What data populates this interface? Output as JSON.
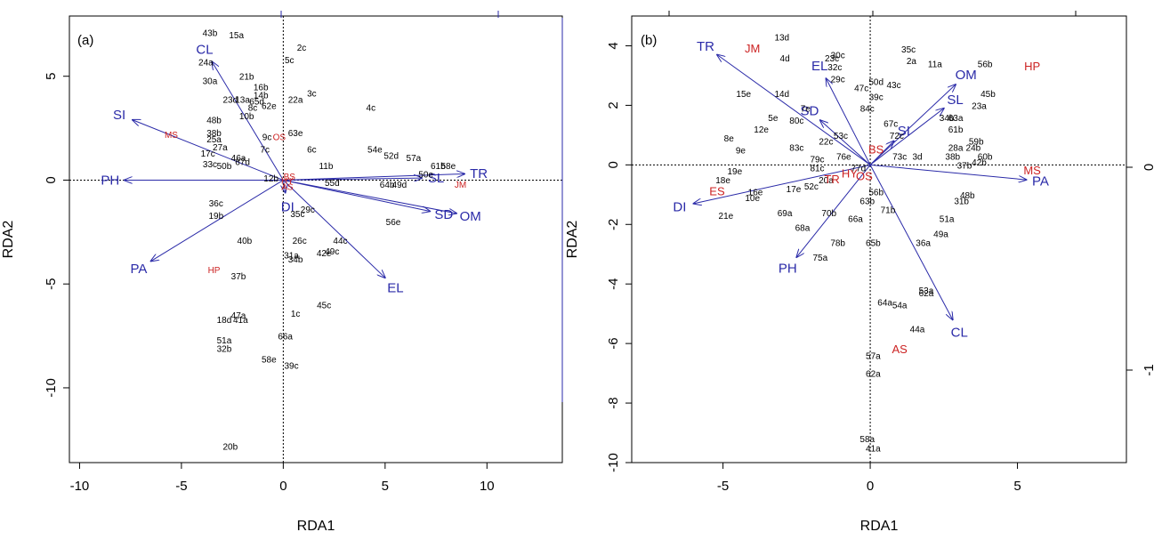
{
  "chart_data": [
    {
      "type": "scatter",
      "panel_label": "(a)",
      "xlabel": "RDA1",
      "ylabel": "RDA2",
      "xlim": [
        -10.5,
        13.7
      ],
      "ylim": [
        -13.6,
        7.9
      ],
      "xticks": [
        -10,
        -5,
        0,
        5,
        10
      ],
      "yticks": [
        5,
        0,
        -5,
        -10
      ],
      "sites": [
        {
          "label": "43b",
          "x": -3.6,
          "y": 7.1
        },
        {
          "label": "15a",
          "x": -2.3,
          "y": 7.0
        },
        {
          "label": "2c",
          "x": 0.9,
          "y": 6.4
        },
        {
          "label": "24a",
          "x": -3.8,
          "y": 5.7
        },
        {
          "label": "5c",
          "x": 0.3,
          "y": 5.8
        },
        {
          "label": "30a",
          "x": -3.6,
          "y": 4.8
        },
        {
          "label": "21b",
          "x": -1.8,
          "y": 5.0
        },
        {
          "label": "16b",
          "x": -1.1,
          "y": 4.5
        },
        {
          "label": "14b",
          "x": -1.1,
          "y": 4.1
        },
        {
          "label": "23d",
          "x": -2.6,
          "y": 3.9
        },
        {
          "label": "13a",
          "x": -2.0,
          "y": 3.9
        },
        {
          "label": "65d",
          "x": -1.3,
          "y": 3.8
        },
        {
          "label": "22a",
          "x": 0.6,
          "y": 3.9
        },
        {
          "label": "3c",
          "x": 1.4,
          "y": 4.2
        },
        {
          "label": "8c",
          "x": -1.5,
          "y": 3.5
        },
        {
          "label": "62e",
          "x": -0.7,
          "y": 3.6
        },
        {
          "label": "4c",
          "x": 4.3,
          "y": 3.5
        },
        {
          "label": "10b",
          "x": -1.8,
          "y": 3.1
        },
        {
          "label": "48b",
          "x": -3.4,
          "y": 2.9
        },
        {
          "label": "38b",
          "x": -3.4,
          "y": 2.3
        },
        {
          "label": "63e",
          "x": 0.6,
          "y": 2.3
        },
        {
          "label": "9c",
          "x": -0.8,
          "y": 2.1
        },
        {
          "label": "25a",
          "x": -3.4,
          "y": 2.0
        },
        {
          "label": "27a",
          "x": -3.1,
          "y": 1.6
        },
        {
          "label": "7c",
          "x": -0.9,
          "y": 1.5
        },
        {
          "label": "6c",
          "x": 1.4,
          "y": 1.5
        },
        {
          "label": "54e",
          "x": 4.5,
          "y": 1.5
        },
        {
          "label": "52d",
          "x": 5.3,
          "y": 1.2
        },
        {
          "label": "17c",
          "x": -3.7,
          "y": 1.3
        },
        {
          "label": "46a",
          "x": -2.2,
          "y": 1.1
        },
        {
          "label": "57a",
          "x": 6.4,
          "y": 1.1
        },
        {
          "label": "33c",
          "x": -3.6,
          "y": 0.8
        },
        {
          "label": "50b",
          "x": -2.9,
          "y": 0.7
        },
        {
          "label": "67d",
          "x": -2.0,
          "y": 0.9
        },
        {
          "label": "11b",
          "x": 2.1,
          "y": 0.7
        },
        {
          "label": "61b",
          "x": 7.6,
          "y": 0.7
        },
        {
          "label": "58e",
          "x": 8.1,
          "y": 0.7
        },
        {
          "label": "12b",
          "x": -0.6,
          "y": 0.1
        },
        {
          "label": "50e",
          "x": 7.0,
          "y": 0.3
        },
        {
          "label": "55d",
          "x": 2.4,
          "y": -0.1
        },
        {
          "label": "64b",
          "x": 5.1,
          "y": -0.2
        },
        {
          "label": "49d",
          "x": 5.7,
          "y": -0.2
        },
        {
          "label": "36c",
          "x": -3.3,
          "y": -1.1
        },
        {
          "label": "29c",
          "x": 1.2,
          "y": -1.4
        },
        {
          "label": "35c",
          "x": 0.7,
          "y": -1.6
        },
        {
          "label": "19b",
          "x": -3.3,
          "y": -1.7
        },
        {
          "label": "56e",
          "x": 5.4,
          "y": -2.0
        },
        {
          "label": "40b",
          "x": -1.9,
          "y": -2.9
        },
        {
          "label": "26c",
          "x": 0.8,
          "y": -2.9
        },
        {
          "label": "44c",
          "x": 2.8,
          "y": -2.9
        },
        {
          "label": "49c",
          "x": 2.4,
          "y": -3.4
        },
        {
          "label": "42e",
          "x": 2.0,
          "y": -3.5
        },
        {
          "label": "31a",
          "x": 0.4,
          "y": -3.6
        },
        {
          "label": "34b",
          "x": 0.6,
          "y": -3.8
        },
        {
          "label": "37b",
          "x": -2.2,
          "y": -4.6
        },
        {
          "label": "45c",
          "x": 2.0,
          "y": -6.0
        },
        {
          "label": "1c",
          "x": 0.6,
          "y": -6.4
        },
        {
          "label": "47a",
          "x": -2.2,
          "y": -6.5
        },
        {
          "label": "18d",
          "x": -2.9,
          "y": -6.7
        },
        {
          "label": "41a",
          "x": -2.1,
          "y": -6.7
        },
        {
          "label": "66a",
          "x": 0.1,
          "y": -7.5
        },
        {
          "label": "51a",
          "x": -2.9,
          "y": -7.7
        },
        {
          "label": "32b",
          "x": -2.9,
          "y": -8.1
        },
        {
          "label": "58e",
          "x": -0.7,
          "y": -8.6
        },
        {
          "label": "39c",
          "x": 0.4,
          "y": -8.9
        },
        {
          "label": "20b",
          "x": -2.6,
          "y": -12.8
        }
      ],
      "species": [
        {
          "label": "MS",
          "x": -5.5,
          "y": 2.2
        },
        {
          "label": "HP",
          "x": -3.4,
          "y": -4.3
        },
        {
          "label": "JM",
          "x": 8.7,
          "y": -0.2
        },
        {
          "label": "BS",
          "x": 0.3,
          "y": 0.2
        },
        {
          "label": "HY",
          "x": 0.2,
          "y": 0.0
        },
        {
          "label": "AS",
          "x": 0.2,
          "y": -0.3
        },
        {
          "label": "OS",
          "x": -0.2,
          "y": 2.1
        }
      ],
      "env_vectors": [
        {
          "label": "CL",
          "x": -3.5,
          "y": 5.7
        },
        {
          "label": "SI",
          "x": -7.4,
          "y": 2.9
        },
        {
          "label": "PH",
          "x": -7.8,
          "y": 0.0
        },
        {
          "label": "PA",
          "x": -6.5,
          "y": -3.9
        },
        {
          "label": "TR",
          "x": 8.9,
          "y": 0.3
        },
        {
          "label": "SL",
          "x": 6.8,
          "y": 0.1
        },
        {
          "label": "SD",
          "x": 7.2,
          "y": -1.5
        },
        {
          "label": "OM",
          "x": 8.5,
          "y": -1.6
        },
        {
          "label": "EL",
          "x": 5.0,
          "y": -4.7
        },
        {
          "label": "DI",
          "x": 0.1,
          "y": -0.6
        }
      ],
      "top_axis_ticks": [],
      "right_axis_ticks": []
    },
    {
      "type": "scatter",
      "panel_label": "(b)",
      "xlabel": "RDA1",
      "ylabel": "RDA2",
      "xlim": [
        -8.1,
        8.7
      ],
      "ylim": [
        -10.0,
        5.0
      ],
      "xticks": [
        -5,
        0,
        5
      ],
      "yticks": [
        4,
        2,
        0,
        -2,
        -4,
        -6,
        -8,
        -10
      ],
      "right_yticks": [
        "0",
        "-1"
      ],
      "sites": [
        {
          "label": "13d",
          "x": -3.0,
          "y": 4.3
        },
        {
          "label": "4d",
          "x": -2.9,
          "y": 3.6
        },
        {
          "label": "35c",
          "x": 1.3,
          "y": 3.9
        },
        {
          "label": "2a",
          "x": 1.4,
          "y": 3.5
        },
        {
          "label": "11a",
          "x": 2.2,
          "y": 3.4
        },
        {
          "label": "56b",
          "x": 3.9,
          "y": 3.4
        },
        {
          "label": "30c",
          "x": -1.1,
          "y": 3.7
        },
        {
          "label": "23c",
          "x": -1.3,
          "y": 3.6
        },
        {
          "label": "32c",
          "x": -1.2,
          "y": 3.3
        },
        {
          "label": "29c",
          "x": -1.1,
          "y": 2.9
        },
        {
          "label": "50d",
          "x": 0.2,
          "y": 2.8
        },
        {
          "label": "43c",
          "x": 0.8,
          "y": 2.7
        },
        {
          "label": "47c",
          "x": -0.3,
          "y": 2.6
        },
        {
          "label": "39c",
          "x": 0.2,
          "y": 2.3
        },
        {
          "label": "45b",
          "x": 4.0,
          "y": 2.4
        },
        {
          "label": "23a",
          "x": 3.7,
          "y": 2.0
        },
        {
          "label": "15e",
          "x": -4.3,
          "y": 2.4
        },
        {
          "label": "14d",
          "x": -3.0,
          "y": 2.4
        },
        {
          "label": "84c",
          "x": -0.1,
          "y": 1.9
        },
        {
          "label": "7e",
          "x": -2.2,
          "y": 1.9
        },
        {
          "label": "5e",
          "x": -3.3,
          "y": 1.6
        },
        {
          "label": "80c",
          "x": -2.5,
          "y": 1.5
        },
        {
          "label": "34b",
          "x": 2.6,
          "y": 1.6
        },
        {
          "label": "63a",
          "x": 2.9,
          "y": 1.6
        },
        {
          "label": "12e",
          "x": -3.7,
          "y": 1.2
        },
        {
          "label": "67c",
          "x": 0.7,
          "y": 1.4
        },
        {
          "label": "61b",
          "x": 2.9,
          "y": 1.2
        },
        {
          "label": "72c",
          "x": 0.9,
          "y": 1.0
        },
        {
          "label": "53c",
          "x": -1.0,
          "y": 1.0
        },
        {
          "label": "8e",
          "x": -4.8,
          "y": 0.9
        },
        {
          "label": "22c",
          "x": -1.5,
          "y": 0.8
        },
        {
          "label": "59b",
          "x": 3.6,
          "y": 0.8
        },
        {
          "label": "9e",
          "x": -4.4,
          "y": 0.5
        },
        {
          "label": "83c",
          "x": -2.5,
          "y": 0.6
        },
        {
          "label": "28a",
          "x": 2.9,
          "y": 0.6
        },
        {
          "label": "24b",
          "x": 3.5,
          "y": 0.6
        },
        {
          "label": "76e",
          "x": -0.9,
          "y": 0.3
        },
        {
          "label": "79c",
          "x": -1.8,
          "y": 0.2
        },
        {
          "label": "73c",
          "x": 1.0,
          "y": 0.3
        },
        {
          "label": "3d",
          "x": 1.6,
          "y": 0.3
        },
        {
          "label": "38b",
          "x": 2.8,
          "y": 0.3
        },
        {
          "label": "60b",
          "x": 3.9,
          "y": 0.3
        },
        {
          "label": "37b",
          "x": 3.2,
          "y": 0.0
        },
        {
          "label": "42b",
          "x": 3.7,
          "y": 0.1
        },
        {
          "label": "19e",
          "x": -4.6,
          "y": -0.2
        },
        {
          "label": "81c",
          "x": -1.8,
          "y": -0.1
        },
        {
          "label": "20a",
          "x": -1.5,
          "y": -0.5
        },
        {
          "label": "77d",
          "x": -0.4,
          "y": -0.1
        },
        {
          "label": "18e",
          "x": -5.0,
          "y": -0.5
        },
        {
          "label": "52c",
          "x": -2.0,
          "y": -0.7
        },
        {
          "label": "17e",
          "x": -2.6,
          "y": -0.8
        },
        {
          "label": "16e",
          "x": -3.9,
          "y": -0.9
        },
        {
          "label": "10e",
          "x": -4.0,
          "y": -1.1
        },
        {
          "label": "48b",
          "x": 3.3,
          "y": -1.0
        },
        {
          "label": "56b",
          "x": 0.2,
          "y": -0.9
        },
        {
          "label": "63b",
          "x": -0.1,
          "y": -1.2
        },
        {
          "label": "31b",
          "x": 3.1,
          "y": -1.2
        },
        {
          "label": "69a",
          "x": -2.9,
          "y": -1.6
        },
        {
          "label": "70b",
          "x": -1.4,
          "y": -1.6
        },
        {
          "label": "71b",
          "x": 0.6,
          "y": -1.5
        },
        {
          "label": "21e",
          "x": -4.9,
          "y": -1.7
        },
        {
          "label": "66a",
          "x": -0.5,
          "y": -1.8
        },
        {
          "label": "51a",
          "x": 2.6,
          "y": -1.8
        },
        {
          "label": "68a",
          "x": -2.3,
          "y": -2.1
        },
        {
          "label": "49a",
          "x": 2.4,
          "y": -2.3
        },
        {
          "label": "36a",
          "x": 1.8,
          "y": -2.6
        },
        {
          "label": "78b",
          "x": -1.1,
          "y": -2.6
        },
        {
          "label": "65b",
          "x": 0.1,
          "y": -2.6
        },
        {
          "label": "75a",
          "x": -1.7,
          "y": -3.1
        },
        {
          "label": "53a",
          "x": 1.9,
          "y": -4.2
        },
        {
          "label": "62a",
          "x": 1.9,
          "y": -4.3
        },
        {
          "label": "64a",
          "x": 0.5,
          "y": -4.6
        },
        {
          "label": "54a",
          "x": 1.0,
          "y": -4.7
        },
        {
          "label": "44a",
          "x": 1.6,
          "y": -5.5
        },
        {
          "label": "57a",
          "x": 0.1,
          "y": -6.4
        },
        {
          "label": "62a",
          "x": 0.1,
          "y": -7.0
        },
        {
          "label": "58a",
          "x": -0.1,
          "y": -9.2
        },
        {
          "label": "41a",
          "x": 0.1,
          "y": -9.5
        }
      ],
      "species": [
        {
          "label": "JM",
          "x": -4.0,
          "y": 3.9
        },
        {
          "label": "HP",
          "x": 5.5,
          "y": 3.3
        },
        {
          "label": "MS",
          "x": 5.5,
          "y": -0.2
        },
        {
          "label": "ES",
          "x": -5.2,
          "y": -0.9
        },
        {
          "label": "BS",
          "x": 0.2,
          "y": 0.5
        },
        {
          "label": "HY",
          "x": -0.7,
          "y": -0.3
        },
        {
          "label": "OS",
          "x": -0.2,
          "y": -0.4
        },
        {
          "label": "TR",
          "x": -1.3,
          "y": -0.5
        },
        {
          "label": "AS",
          "x": 1.0,
          "y": -6.2
        }
      ],
      "env_vectors": [
        {
          "label": "TR",
          "x": -5.2,
          "y": 3.7
        },
        {
          "label": "EL",
          "x": -1.5,
          "y": 2.9
        },
        {
          "label": "SD",
          "x": -1.7,
          "y": 1.5
        },
        {
          "label": "OM",
          "x": 2.9,
          "y": 2.7
        },
        {
          "label": "SL",
          "x": 2.5,
          "y": 1.9
        },
        {
          "label": "SI",
          "x": 0.8,
          "y": 0.8
        },
        {
          "label": "PA",
          "x": 5.3,
          "y": -0.5
        },
        {
          "label": "DI",
          "x": -6.0,
          "y": -1.3
        },
        {
          "label": "PH",
          "x": -2.5,
          "y": -3.1
        },
        {
          "label": "CL",
          "x": 2.8,
          "y": -5.2
        }
      ]
    }
  ]
}
